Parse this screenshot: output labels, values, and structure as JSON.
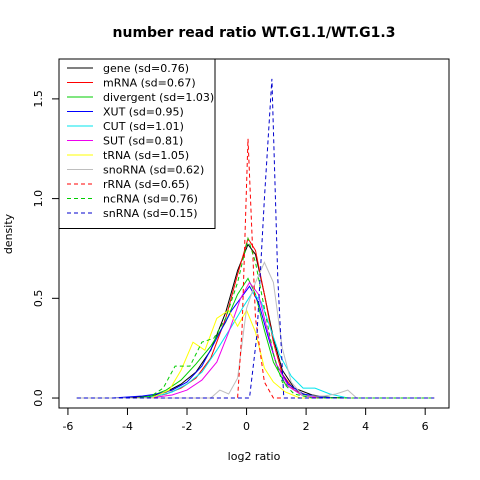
{
  "chart_data": {
    "type": "line",
    "title": "number read ratio WT.G1.1/WT.G1.3",
    "xlabel": "log2 ratio",
    "ylabel": "density",
    "xlim": [
      -6.3,
      6.8
    ],
    "ylim": [
      -0.05,
      1.7
    ],
    "xticks": [
      "-6",
      "-4",
      "-2",
      "0",
      "2",
      "4",
      "6"
    ],
    "yticks": [
      "0.0",
      "0.5",
      "1.0",
      "1.5"
    ],
    "legend_position": "top-left",
    "series": [
      {
        "name": "gene (sd=0.76)",
        "color": "#000000",
        "dash": "solid",
        "points": [
          [
            -5.7,
            0
          ],
          [
            -4.2,
            0
          ],
          [
            -3.7,
            0.005
          ],
          [
            -3.2,
            0.01
          ],
          [
            -2.7,
            0.03
          ],
          [
            -2.2,
            0.07
          ],
          [
            -1.7,
            0.13
          ],
          [
            -1.2,
            0.24
          ],
          [
            -0.7,
            0.43
          ],
          [
            -0.3,
            0.64
          ],
          [
            0.05,
            0.77
          ],
          [
            0.3,
            0.72
          ],
          [
            0.6,
            0.52
          ],
          [
            0.9,
            0.3
          ],
          [
            1.2,
            0.14
          ],
          [
            1.6,
            0.05
          ],
          [
            2.2,
            0.015
          ],
          [
            2.8,
            0.003
          ],
          [
            3.5,
            0
          ],
          [
            6.3,
            0
          ]
        ]
      },
      {
        "name": "mRNA (sd=0.67)",
        "color": "#ff0000",
        "dash": "solid",
        "points": [
          [
            -5.7,
            0
          ],
          [
            -3.8,
            0
          ],
          [
            -3.2,
            0.005
          ],
          [
            -2.7,
            0.02
          ],
          [
            -2.2,
            0.05
          ],
          [
            -1.7,
            0.1
          ],
          [
            -1.2,
            0.2
          ],
          [
            -0.7,
            0.4
          ],
          [
            -0.3,
            0.62
          ],
          [
            0.05,
            0.8
          ],
          [
            0.3,
            0.74
          ],
          [
            0.6,
            0.52
          ],
          [
            0.9,
            0.28
          ],
          [
            1.2,
            0.12
          ],
          [
            1.6,
            0.04
          ],
          [
            2.1,
            0.01
          ],
          [
            2.7,
            0
          ],
          [
            6.3,
            0
          ]
        ]
      },
      {
        "name": "divergent (sd=1.03)",
        "color": "#00cd00",
        "dash": "solid",
        "points": [
          [
            -5.7,
            0
          ],
          [
            -3.7,
            0
          ],
          [
            -3.2,
            0.01
          ],
          [
            -2.7,
            0.04
          ],
          [
            -2.2,
            0.09
          ],
          [
            -1.7,
            0.17
          ],
          [
            -1.2,
            0.26
          ],
          [
            -0.7,
            0.38
          ],
          [
            -0.3,
            0.52
          ],
          [
            0.05,
            0.6
          ],
          [
            0.3,
            0.52
          ],
          [
            0.6,
            0.34
          ],
          [
            0.9,
            0.18
          ],
          [
            1.3,
            0.07
          ],
          [
            1.8,
            0.02
          ],
          [
            2.5,
            0.005
          ],
          [
            3.2,
            0
          ],
          [
            6.3,
            0
          ]
        ]
      },
      {
        "name": "XUT (sd=0.95)",
        "color": "#0000ff",
        "dash": "solid",
        "points": [
          [
            -5.7,
            0
          ],
          [
            -4.5,
            0
          ],
          [
            -4.0,
            0.005
          ],
          [
            -3.5,
            0.01
          ],
          [
            -3.0,
            0.02
          ],
          [
            -2.5,
            0.04
          ],
          [
            -2.0,
            0.08
          ],
          [
            -1.5,
            0.16
          ],
          [
            -1.0,
            0.3
          ],
          [
            -0.5,
            0.44
          ],
          [
            -0.1,
            0.52
          ],
          [
            0.1,
            0.56
          ],
          [
            0.4,
            0.48
          ],
          [
            0.7,
            0.32
          ],
          [
            1.0,
            0.17
          ],
          [
            1.4,
            0.07
          ],
          [
            1.9,
            0.02
          ],
          [
            2.5,
            0.005
          ],
          [
            3.0,
            0
          ],
          [
            6.3,
            0
          ]
        ]
      },
      {
        "name": "CUT (sd=1.01)",
        "color": "#00e5ee",
        "dash": "solid",
        "points": [
          [
            -5.7,
            0
          ],
          [
            -3.5,
            0
          ],
          [
            -3.0,
            0.01
          ],
          [
            -2.5,
            0.03
          ],
          [
            -2.0,
            0.07
          ],
          [
            -1.5,
            0.13
          ],
          [
            -1.0,
            0.24
          ],
          [
            -0.5,
            0.36
          ],
          [
            -0.1,
            0.46
          ],
          [
            0.2,
            0.53
          ],
          [
            0.5,
            0.48
          ],
          [
            0.8,
            0.35
          ],
          [
            1.1,
            0.22
          ],
          [
            1.5,
            0.11
          ],
          [
            1.9,
            0.05
          ],
          [
            2.3,
            0.05
          ],
          [
            2.8,
            0.02
          ],
          [
            3.4,
            0
          ],
          [
            6.3,
            0
          ]
        ]
      },
      {
        "name": "SUT (sd=0.81)",
        "color": "#ee00ee",
        "dash": "solid",
        "points": [
          [
            -5.7,
            0
          ],
          [
            -3.5,
            0
          ],
          [
            -3.0,
            0.005
          ],
          [
            -2.5,
            0.015
          ],
          [
            -2.0,
            0.04
          ],
          [
            -1.5,
            0.09
          ],
          [
            -1.0,
            0.18
          ],
          [
            -0.6,
            0.33
          ],
          [
            -0.2,
            0.5
          ],
          [
            0.1,
            0.58
          ],
          [
            0.4,
            0.52
          ],
          [
            0.7,
            0.34
          ],
          [
            1.0,
            0.17
          ],
          [
            1.4,
            0.06
          ],
          [
            1.9,
            0.01
          ],
          [
            2.5,
            0
          ],
          [
            6.3,
            0
          ]
        ]
      },
      {
        "name": "tRNA (sd=1.05)",
        "color": "#ffff00",
        "dash": "solid",
        "points": [
          [
            -5.7,
            0
          ],
          [
            -3.2,
            0
          ],
          [
            -2.6,
            0.04
          ],
          [
            -2.2,
            0.14
          ],
          [
            -1.8,
            0.28
          ],
          [
            -1.4,
            0.24
          ],
          [
            -1.0,
            0.4
          ],
          [
            -0.6,
            0.44
          ],
          [
            -0.3,
            0.36
          ],
          [
            0,
            0.44
          ],
          [
            0.3,
            0.33
          ],
          [
            0.6,
            0.15
          ],
          [
            0.9,
            0.08
          ],
          [
            1.3,
            0.03
          ],
          [
            1.8,
            0
          ],
          [
            6.3,
            0
          ]
        ]
      },
      {
        "name": "snoRNA (sd=0.62)",
        "color": "#bebebe",
        "dash": "solid",
        "points": [
          [
            -5.7,
            0
          ],
          [
            -1.2,
            0
          ],
          [
            -0.9,
            0.04
          ],
          [
            -0.6,
            0.02
          ],
          [
            -0.3,
            0.1
          ],
          [
            0,
            0.45
          ],
          [
            0.3,
            0.58
          ],
          [
            0.6,
            0.68
          ],
          [
            0.9,
            0.58
          ],
          [
            1.2,
            0.25
          ],
          [
            1.5,
            0.08
          ],
          [
            1.9,
            0.01
          ],
          [
            2.6,
            0.01
          ],
          [
            3.0,
            0.02
          ],
          [
            3.4,
            0.04
          ],
          [
            3.7,
            0
          ],
          [
            6.3,
            0
          ]
        ]
      },
      {
        "name": "rRNA (sd=0.65)",
        "color": "#ff0000",
        "dash": "dashed",
        "points": [
          [
            -5.7,
            0
          ],
          [
            -0.3,
            0
          ],
          [
            -0.15,
            0.35
          ],
          [
            0.05,
            1.3
          ],
          [
            0.3,
            0.4
          ],
          [
            0.6,
            0.08
          ],
          [
            0.9,
            0
          ],
          [
            6.3,
            0
          ]
        ]
      },
      {
        "name": "ncRNA (sd=0.76)",
        "color": "#00cd00",
        "dash": "dashed",
        "points": [
          [
            -5.7,
            0
          ],
          [
            -3.3,
            0
          ],
          [
            -2.8,
            0.05
          ],
          [
            -2.4,
            0.16
          ],
          [
            -1.9,
            0.16
          ],
          [
            -1.5,
            0.28
          ],
          [
            -1.1,
            0.3
          ],
          [
            -0.7,
            0.4
          ],
          [
            -0.3,
            0.58
          ],
          [
            0.05,
            0.8
          ],
          [
            0.3,
            0.68
          ],
          [
            0.6,
            0.45
          ],
          [
            0.9,
            0.22
          ],
          [
            1.2,
            0.08
          ],
          [
            1.6,
            0.02
          ],
          [
            2.2,
            0
          ],
          [
            6.3,
            0
          ]
        ]
      },
      {
        "name": "snRNA (sd=0.15)",
        "color": "#0000cd",
        "dash": "dashed",
        "points": [
          [
            -5.7,
            0
          ],
          [
            0.1,
            0
          ],
          [
            0.35,
            0.32
          ],
          [
            0.6,
            1.0
          ],
          [
            0.85,
            1.6
          ],
          [
            1.05,
            0.6
          ],
          [
            1.25,
            0
          ],
          [
            6.3,
            0
          ]
        ]
      }
    ]
  }
}
